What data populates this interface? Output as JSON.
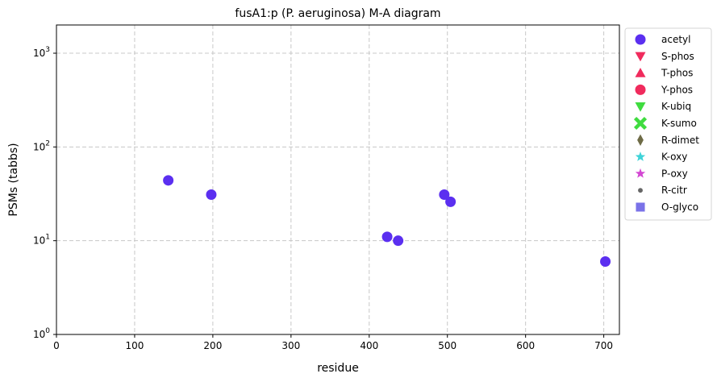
{
  "chart_data": {
    "type": "scatter",
    "title": "fusA1:p (P. aeruginosa) M-A diagram",
    "xlabel": "residue",
    "ylabel": "PSMs (tabbs)",
    "xlim": [
      0,
      720
    ],
    "ylim": [
      1,
      2000
    ],
    "yscale": "log",
    "grid": true,
    "legend_position": "outside-right",
    "x_ticks": [
      0,
      100,
      200,
      300,
      400,
      500,
      600,
      700
    ],
    "x_tick_labels": [
      "0",
      "100",
      "200",
      "300",
      "400",
      "500",
      "600",
      "700"
    ],
    "y_ticks": [
      1,
      10,
      100,
      1000
    ],
    "y_tick_labels": [
      {
        "base": "10",
        "exp": "0"
      },
      {
        "base": "10",
        "exp": "1"
      },
      {
        "base": "10",
        "exp": "2"
      },
      {
        "base": "10",
        "exp": "3"
      }
    ],
    "series": [
      {
        "name": "acetyl",
        "marker": "circle",
        "color": "#5b2ff0",
        "points": [
          [
            143,
            44
          ],
          [
            198,
            31
          ],
          [
            423,
            11
          ],
          [
            437,
            10
          ],
          [
            496,
            31
          ],
          [
            504,
            26
          ],
          [
            702,
            6
          ]
        ]
      },
      {
        "name": "S-phos",
        "marker": "triangle-down",
        "color": "#f02b5d",
        "points": []
      },
      {
        "name": "T-phos",
        "marker": "triangle-up",
        "color": "#f02b5d",
        "points": []
      },
      {
        "name": "Y-phos",
        "marker": "circle",
        "color": "#f02b5d",
        "points": []
      },
      {
        "name": "K-ubiq",
        "marker": "triangle-down",
        "color": "#3fdc3f",
        "points": []
      },
      {
        "name": "K-sumo",
        "marker": "x-bold",
        "color": "#3fdc3f",
        "points": []
      },
      {
        "name": "R-dimet",
        "marker": "diamond-thin",
        "color": "#6e6b46",
        "points": []
      },
      {
        "name": "K-oxy",
        "marker": "star",
        "color": "#3fd3d8",
        "points": []
      },
      {
        "name": "P-oxy",
        "marker": "star",
        "color": "#d347d3",
        "points": []
      },
      {
        "name": "R-citr",
        "marker": "small-dot",
        "color": "#666666",
        "points": []
      },
      {
        "name": "O-glyco",
        "marker": "square",
        "color": "#7a72e8",
        "points": []
      }
    ]
  }
}
